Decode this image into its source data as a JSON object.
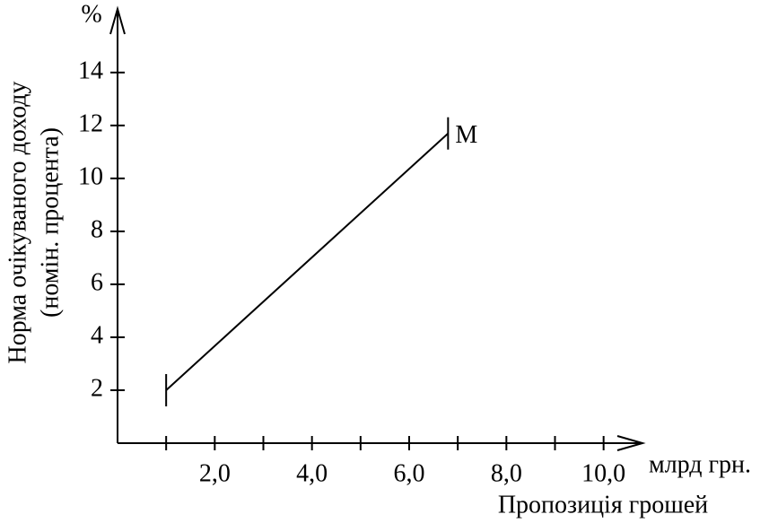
{
  "chart_data": {
    "type": "line",
    "xlabel": "Пропозиція грошей",
    "xunit": "млрд грн.",
    "ylabel": [
      "Норма очікуваного доходу",
      "(номін. процента)"
    ],
    "yunit": "%",
    "xlim": [
      0,
      10.8
    ],
    "ylim": [
      0,
      16.4
    ],
    "xticks": [
      {
        "value": 2,
        "label": "2,0"
      },
      {
        "value": 4,
        "label": "4,0"
      },
      {
        "value": 6,
        "label": "6,0"
      },
      {
        "value": 8,
        "label": "8,0"
      },
      {
        "value": 10,
        "label": "10,0"
      }
    ],
    "xticks_minor": [
      1,
      3,
      5,
      7,
      9
    ],
    "yticks": [
      2,
      4,
      6,
      8,
      10,
      12,
      14
    ],
    "series": [
      {
        "name": "M",
        "color": "#000000",
        "x": [
          1,
          6.8
        ],
        "values": [
          2,
          11.7
        ]
      }
    ]
  }
}
